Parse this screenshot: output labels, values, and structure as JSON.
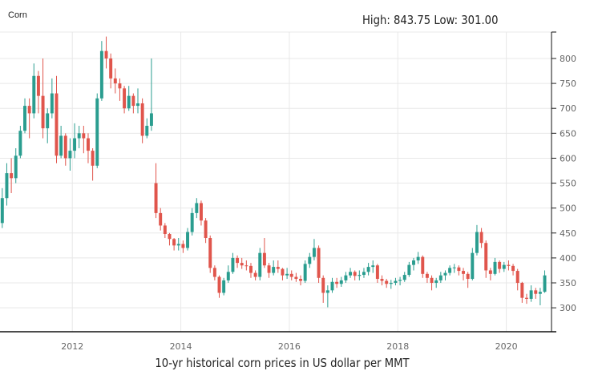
{
  "header": {
    "symbol": "Corn",
    "high_low": "High: 843.75 Low: 301.00"
  },
  "caption": "10-yr historical corn prices in US dollar per MMT",
  "colors": {
    "up": "#2a9d8f",
    "down": "#e0554c",
    "grid": "#e8e8e8"
  },
  "chart_data": {
    "type": "candlestick",
    "title": "",
    "xlabel": "10-yr historical corn prices in US dollar per MMT",
    "ylabel": "",
    "ylim": [
      252,
      853
    ],
    "xlim": [
      "2010-09",
      "2020-11"
    ],
    "grid": true,
    "y_axis_position": "right",
    "yticks": [
      300,
      350,
      400,
      450,
      500,
      550,
      600,
      650,
      700,
      750,
      800
    ],
    "xticks": [
      "2012",
      "2014",
      "2016",
      "2018",
      "2020"
    ],
    "columns": [
      "date",
      "open",
      "high",
      "low",
      "close"
    ],
    "candles": [
      [
        "2010-09",
        470,
        540,
        460,
        520
      ],
      [
        "2010-10",
        520,
        590,
        505,
        570
      ],
      [
        "2010-11",
        570,
        600,
        530,
        560
      ],
      [
        "2010-12",
        560,
        620,
        550,
        605
      ],
      [
        "2011-01",
        605,
        665,
        600,
        655
      ],
      [
        "2011-02",
        655,
        720,
        650,
        705
      ],
      [
        "2011-03",
        705,
        720,
        640,
        690
      ],
      [
        "2011-04",
        690,
        790,
        680,
        765
      ],
      [
        "2011-05",
        765,
        775,
        690,
        725
      ],
      [
        "2011-06",
        725,
        800,
        640,
        660
      ],
      [
        "2011-07",
        660,
        700,
        630,
        690
      ],
      [
        "2011-08",
        690,
        760,
        680,
        730
      ],
      [
        "2011-09",
        730,
        765,
        590,
        605
      ],
      [
        "2011-10",
        605,
        665,
        600,
        645
      ],
      [
        "2011-11",
        645,
        650,
        585,
        600
      ],
      [
        "2011-12",
        600,
        640,
        575,
        615
      ],
      [
        "2012-01",
        615,
        670,
        600,
        640
      ],
      [
        "2012-02",
        640,
        665,
        620,
        650
      ],
      [
        "2012-03",
        650,
        665,
        610,
        640
      ],
      [
        "2012-04",
        640,
        650,
        590,
        615
      ],
      [
        "2012-05",
        615,
        620,
        555,
        585
      ],
      [
        "2012-06",
        585,
        730,
        580,
        720
      ],
      [
        "2012-07",
        720,
        835,
        715,
        815
      ],
      [
        "2012-08",
        815,
        844,
        780,
        800
      ],
      [
        "2012-09",
        800,
        810,
        740,
        760
      ],
      [
        "2012-10",
        760,
        780,
        730,
        750
      ],
      [
        "2012-11",
        750,
        760,
        715,
        740
      ],
      [
        "2012-12",
        740,
        745,
        690,
        700
      ],
      [
        "2013-01",
        700,
        745,
        695,
        725
      ],
      [
        "2013-02",
        725,
        730,
        690,
        705
      ],
      [
        "2013-03",
        705,
        740,
        690,
        710
      ],
      [
        "2013-04",
        710,
        720,
        630,
        645
      ],
      [
        "2013-05",
        645,
        680,
        640,
        665
      ],
      [
        "2013-06",
        665,
        800,
        655,
        690
      ],
      [
        "2013-07",
        550,
        590,
        480,
        490
      ],
      [
        "2013-08",
        490,
        500,
        455,
        465
      ],
      [
        "2013-09",
        465,
        470,
        440,
        448
      ],
      [
        "2013-10",
        448,
        450,
        425,
        438
      ],
      [
        "2013-11",
        438,
        440,
        415,
        425
      ],
      [
        "2013-12",
        425,
        440,
        415,
        428
      ],
      [
        "2014-01",
        428,
        435,
        410,
        420
      ],
      [
        "2014-02",
        420,
        460,
        415,
        452
      ],
      [
        "2014-03",
        452,
        500,
        445,
        490
      ],
      [
        "2014-04",
        490,
        520,
        480,
        510
      ],
      [
        "2014-05",
        510,
        515,
        465,
        475
      ],
      [
        "2014-06",
        475,
        480,
        430,
        440
      ],
      [
        "2014-07",
        440,
        445,
        370,
        380
      ],
      [
        "2014-08",
        380,
        385,
        355,
        362
      ],
      [
        "2014-09",
        362,
        365,
        320,
        330
      ],
      [
        "2014-10",
        330,
        360,
        325,
        355
      ],
      [
        "2014-11",
        355,
        385,
        350,
        372
      ],
      [
        "2014-12",
        372,
        410,
        368,
        400
      ],
      [
        "2015-01",
        400,
        405,
        380,
        390
      ],
      [
        "2015-02",
        390,
        400,
        378,
        385
      ],
      [
        "2015-03",
        385,
        395,
        375,
        384
      ],
      [
        "2015-04",
        384,
        390,
        360,
        370
      ],
      [
        "2015-05",
        370,
        375,
        355,
        362
      ],
      [
        "2015-06",
        362,
        420,
        355,
        410
      ],
      [
        "2015-07",
        410,
        440,
        380,
        385
      ],
      [
        "2015-08",
        385,
        390,
        360,
        370
      ],
      [
        "2015-09",
        370,
        395,
        365,
        382
      ],
      [
        "2015-10",
        382,
        395,
        370,
        378
      ],
      [
        "2015-11",
        378,
        380,
        355,
        365
      ],
      [
        "2015-12",
        365,
        380,
        358,
        368
      ],
      [
        "2016-01",
        368,
        375,
        355,
        362
      ],
      [
        "2016-02",
        362,
        370,
        352,
        358
      ],
      [
        "2016-03",
        358,
        365,
        345,
        354
      ],
      [
        "2016-04",
        354,
        395,
        350,
        388
      ],
      [
        "2016-05",
        388,
        410,
        380,
        402
      ],
      [
        "2016-06",
        402,
        438,
        395,
        420
      ],
      [
        "2016-07",
        420,
        425,
        350,
        360
      ],
      [
        "2016-08",
        360,
        365,
        310,
        330
      ],
      [
        "2016-09",
        330,
        345,
        301,
        335
      ],
      [
        "2016-10",
        335,
        360,
        330,
        352
      ],
      [
        "2016-11",
        352,
        360,
        340,
        348
      ],
      [
        "2016-12",
        348,
        362,
        342,
        355
      ],
      [
        "2017-01",
        355,
        372,
        350,
        365
      ],
      [
        "2017-02",
        365,
        380,
        360,
        372
      ],
      [
        "2017-03",
        372,
        375,
        355,
        364
      ],
      [
        "2017-04",
        364,
        375,
        355,
        366
      ],
      [
        "2017-05",
        366,
        380,
        360,
        372
      ],
      [
        "2017-06",
        372,
        390,
        365,
        382
      ],
      [
        "2017-07",
        382,
        395,
        370,
        385
      ],
      [
        "2017-08",
        385,
        388,
        350,
        358
      ],
      [
        "2017-09",
        358,
        365,
        345,
        354
      ],
      [
        "2017-10",
        354,
        358,
        340,
        348
      ],
      [
        "2017-11",
        348,
        356,
        338,
        350
      ],
      [
        "2017-12",
        350,
        360,
        345,
        354
      ],
      [
        "2018-01",
        354,
        362,
        345,
        356
      ],
      [
        "2018-02",
        356,
        372,
        352,
        366
      ],
      [
        "2018-03",
        366,
        392,
        362,
        386
      ],
      [
        "2018-04",
        386,
        400,
        375,
        395
      ],
      [
        "2018-05",
        395,
        412,
        388,
        402
      ],
      [
        "2018-06",
        402,
        405,
        360,
        368
      ],
      [
        "2018-07",
        368,
        372,
        350,
        360
      ],
      [
        "2018-08",
        360,
        365,
        335,
        350
      ],
      [
        "2018-09",
        350,
        360,
        340,
        355
      ],
      [
        "2018-10",
        355,
        372,
        350,
        365
      ],
      [
        "2018-11",
        365,
        375,
        355,
        370
      ],
      [
        "2018-12",
        370,
        385,
        365,
        380
      ],
      [
        "2019-01",
        380,
        388,
        370,
        381
      ],
      [
        "2019-02",
        381,
        385,
        365,
        374
      ],
      [
        "2019-03",
        374,
        380,
        355,
        368
      ],
      [
        "2019-04",
        368,
        372,
        340,
        358
      ],
      [
        "2019-05",
        358,
        420,
        355,
        410
      ],
      [
        "2019-06",
        410,
        466,
        405,
        452
      ],
      [
        "2019-07",
        452,
        460,
        420,
        430
      ],
      [
        "2019-08",
        430,
        435,
        360,
        375
      ],
      [
        "2019-09",
        375,
        380,
        355,
        368
      ],
      [
        "2019-10",
        368,
        400,
        365,
        392
      ],
      [
        "2019-11",
        392,
        395,
        370,
        378
      ],
      [
        "2019-12",
        378,
        392,
        372,
        386
      ],
      [
        "2020-01",
        386,
        395,
        375,
        384
      ],
      [
        "2020-02",
        384,
        388,
        365,
        374
      ],
      [
        "2020-03",
        374,
        378,
        335,
        350
      ],
      [
        "2020-04",
        350,
        352,
        310,
        320
      ],
      [
        "2020-05",
        320,
        328,
        308,
        318
      ],
      [
        "2020-06",
        318,
        345,
        312,
        335
      ],
      [
        "2020-07",
        335,
        340,
        318,
        328
      ],
      [
        "2020-08",
        328,
        340,
        305,
        332
      ],
      [
        "2020-09",
        332,
        375,
        330,
        365
      ]
    ]
  }
}
